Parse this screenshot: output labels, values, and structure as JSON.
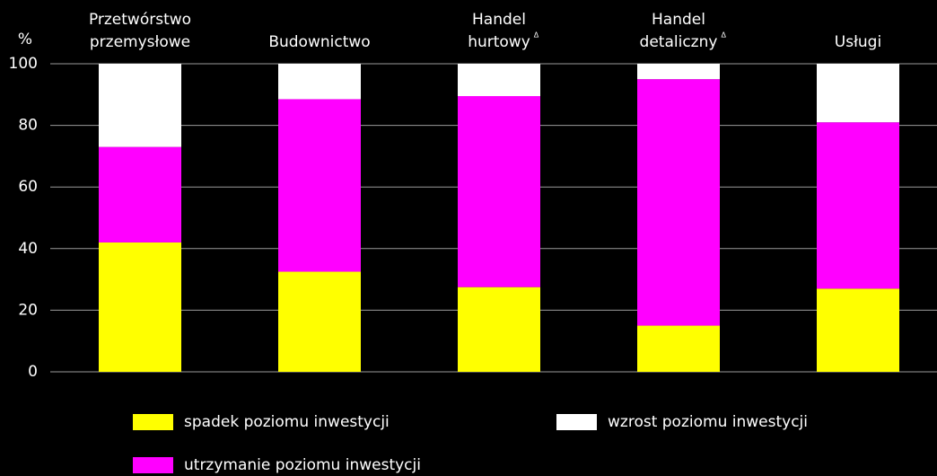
{
  "chart_data": {
    "type": "stacked_bar",
    "y_unit": "%",
    "categories": [
      [
        "Przetwórstwo",
        "przemysłowe"
      ],
      [
        "Budownictwo"
      ],
      [
        "Handel",
        "hurtowy"
      ],
      [
        "Handel",
        "detaliczny"
      ],
      [
        "Usługi"
      ]
    ],
    "category_notes": [
      null,
      null,
      "Δ",
      "Δ",
      null
    ],
    "series": [
      {
        "name": "spadek poziomu inwestycji",
        "color": "#ffff00",
        "values": [
          42,
          32.5,
          27.5,
          15,
          27
        ]
      },
      {
        "name": "utrzymanie poziomu inwestycji",
        "color": "#ff00ff",
        "values": [
          31,
          56,
          62,
          80,
          54
        ]
      },
      {
        "name": "wzrost poziomu inwestycji",
        "color": "#ffffff",
        "values": [
          27,
          11.5,
          10.5,
          5,
          19
        ]
      }
    ],
    "ylim": [
      0,
      100
    ],
    "yticks": [
      0,
      20,
      40,
      60,
      80,
      100
    ],
    "grid": true
  }
}
